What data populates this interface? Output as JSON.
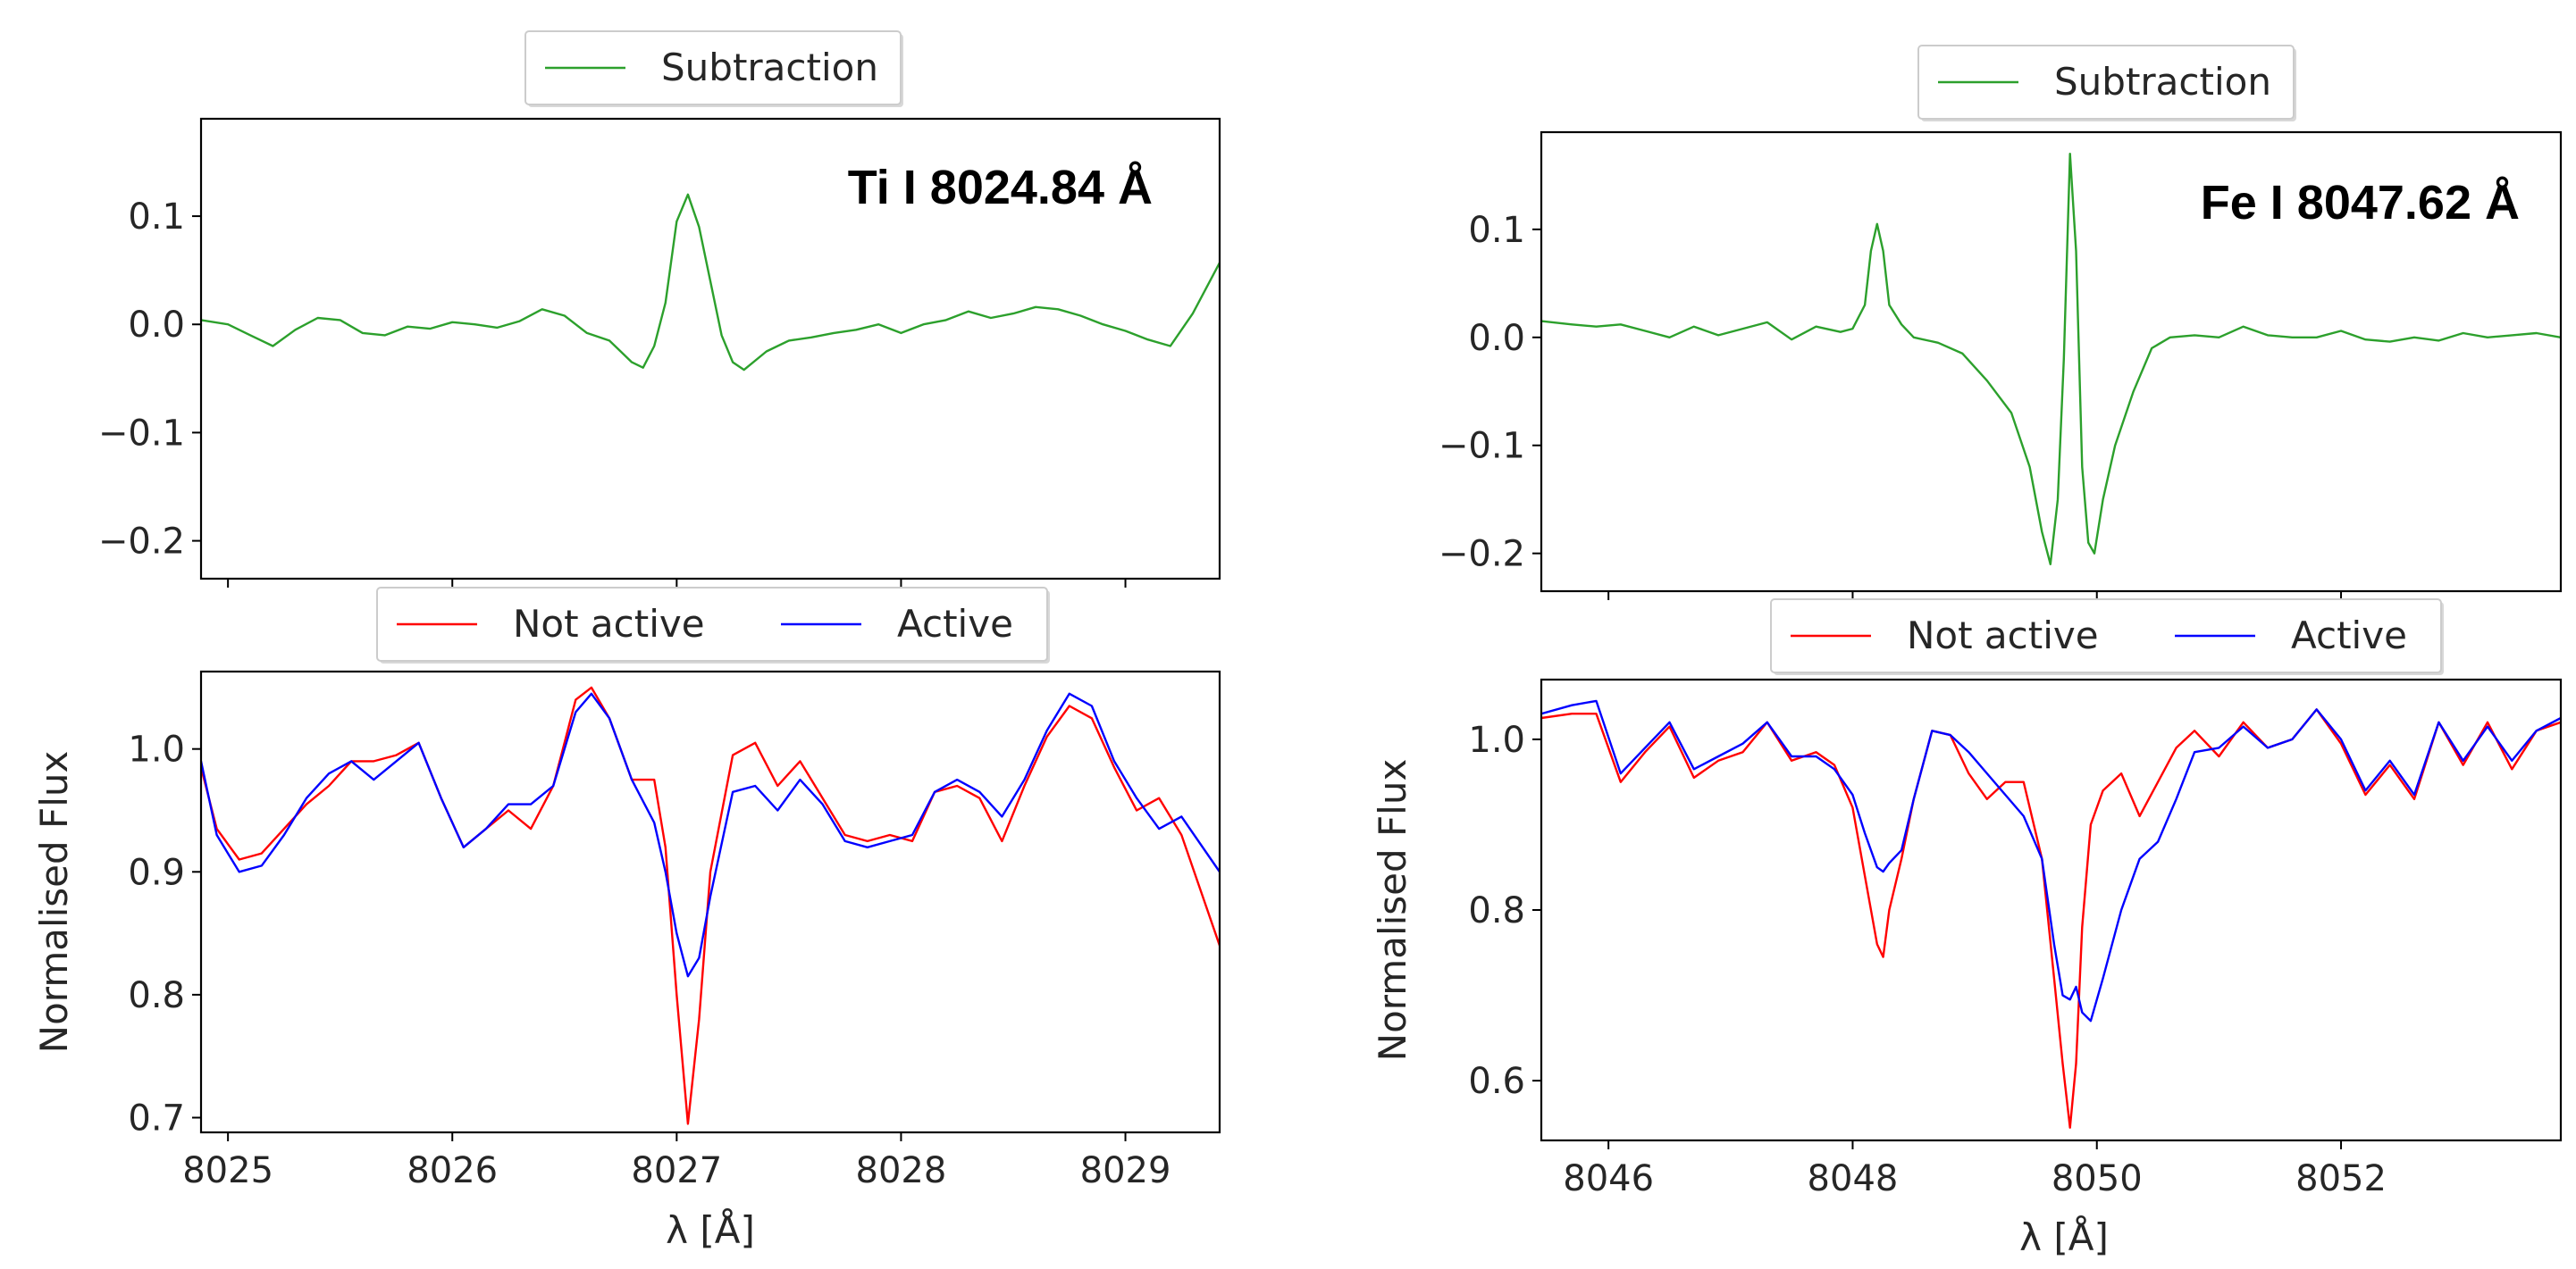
{
  "chart_data": [
    {
      "type": "line",
      "panel": "top-left",
      "title": "",
      "annotation": "Ti I 8024.84 Å",
      "xlabel": "",
      "ylabel": "",
      "xlim": [
        8024.88,
        8029.42
      ],
      "ylim": [
        -0.235,
        0.19
      ],
      "yticks": [
        0.1,
        0.0,
        -0.1,
        -0.2
      ],
      "ytick_labels": [
        "0.1",
        "0.0",
        "−0.1",
        "−0.2"
      ],
      "xticks": [
        8025,
        8026,
        8027,
        8028,
        8029
      ],
      "grid": false,
      "legend": "top-center",
      "series": [
        {
          "name": "Subtraction",
          "color": "#2ca02c",
          "x": [
            8024.88,
            8025.0,
            8025.1,
            8025.2,
            8025.3,
            8025.4,
            8025.5,
            8025.6,
            8025.7,
            8025.8,
            8025.9,
            8026.0,
            8026.1,
            8026.2,
            8026.3,
            8026.4,
            8026.5,
            8026.6,
            8026.7,
            8026.75,
            8026.8,
            8026.85,
            8026.9,
            8026.95,
            8027.0,
            8027.05,
            8027.1,
            8027.15,
            8027.2,
            8027.25,
            8027.3,
            8027.4,
            8027.5,
            8027.6,
            8027.7,
            8027.8,
            8027.9,
            8028.0,
            8028.1,
            8028.2,
            8028.3,
            8028.4,
            8028.5,
            8028.6,
            8028.7,
            8028.8,
            8028.9,
            8029.0,
            8029.1,
            8029.2,
            8029.3,
            8029.42
          ],
          "y": [
            0.004,
            0.0,
            -0.01,
            -0.02,
            -0.005,
            0.006,
            0.004,
            -0.008,
            -0.01,
            -0.002,
            -0.004,
            0.002,
            0.0,
            -0.003,
            0.003,
            0.014,
            0.008,
            -0.008,
            -0.015,
            -0.025,
            -0.035,
            -0.04,
            -0.02,
            0.02,
            0.095,
            0.12,
            0.09,
            0.04,
            -0.01,
            -0.035,
            -0.042,
            -0.025,
            -0.015,
            -0.012,
            -0.008,
            -0.005,
            0.0,
            -0.008,
            0.0,
            0.004,
            0.012,
            0.006,
            0.01,
            0.016,
            0.014,
            0.008,
            0.0,
            -0.006,
            -0.014,
            -0.02,
            0.01,
            0.057
          ]
        }
      ]
    },
    {
      "type": "line",
      "panel": "bottom-left",
      "title": "",
      "xlabel": "λ  [Å]",
      "ylabel": "Normalised Flux",
      "xlim": [
        8024.88,
        8029.42
      ],
      "ylim": [
        0.688,
        1.063
      ],
      "yticks": [
        1.0,
        0.9,
        0.8,
        0.7
      ],
      "ytick_labels": [
        "1.0",
        "0.9",
        "0.8",
        "0.7"
      ],
      "xticks": [
        8025,
        8026,
        8027,
        8028,
        8029
      ],
      "xtick_labels": [
        "8025",
        "8026",
        "8027",
        "8028",
        "8029"
      ],
      "grid": false,
      "legend": "top-center",
      "series": [
        {
          "name": "Not active",
          "color": "#ff0000",
          "x": [
            8024.88,
            8024.95,
            8025.05,
            8025.15,
            8025.25,
            8025.35,
            8025.45,
            8025.55,
            8025.65,
            8025.75,
            8025.85,
            8025.95,
            8026.05,
            8026.15,
            8026.25,
            8026.35,
            8026.45,
            8026.55,
            8026.62,
            8026.7,
            8026.8,
            8026.9,
            8026.95,
            8027.0,
            8027.05,
            8027.1,
            8027.15,
            8027.25,
            8027.35,
            8027.45,
            8027.55,
            8027.65,
            8027.75,
            8027.85,
            8027.95,
            8028.05,
            8028.15,
            8028.25,
            8028.35,
            8028.45,
            8028.55,
            8028.65,
            8028.75,
            8028.85,
            8028.95,
            8029.05,
            8029.15,
            8029.25,
            8029.42
          ],
          "y": [
            0.985,
            0.935,
            0.91,
            0.915,
            0.935,
            0.955,
            0.97,
            0.99,
            0.99,
            0.995,
            1.005,
            0.96,
            0.92,
            0.935,
            0.95,
            0.935,
            0.97,
            1.04,
            1.05,
            1.025,
            0.975,
            0.975,
            0.92,
            0.8,
            0.695,
            0.78,
            0.9,
            0.995,
            1.005,
            0.97,
            0.99,
            0.96,
            0.93,
            0.925,
            0.93,
            0.925,
            0.965,
            0.97,
            0.96,
            0.925,
            0.97,
            1.01,
            1.035,
            1.025,
            0.985,
            0.95,
            0.96,
            0.93,
            0.84
          ]
        },
        {
          "name": "Active",
          "color": "#0000ff",
          "x": [
            8024.88,
            8024.95,
            8025.05,
            8025.15,
            8025.25,
            8025.35,
            8025.45,
            8025.55,
            8025.65,
            8025.75,
            8025.85,
            8025.95,
            8026.05,
            8026.15,
            8026.25,
            8026.35,
            8026.45,
            8026.55,
            8026.62,
            8026.7,
            8026.8,
            8026.9,
            8026.95,
            8027.0,
            8027.05,
            8027.1,
            8027.15,
            8027.25,
            8027.35,
            8027.45,
            8027.55,
            8027.65,
            8027.75,
            8027.85,
            8027.95,
            8028.05,
            8028.15,
            8028.25,
            8028.35,
            8028.45,
            8028.55,
            8028.65,
            8028.75,
            8028.85,
            8028.95,
            8029.05,
            8029.15,
            8029.25,
            8029.42
          ],
          "y": [
            0.99,
            0.93,
            0.9,
            0.905,
            0.93,
            0.96,
            0.98,
            0.99,
            0.975,
            0.99,
            1.005,
            0.96,
            0.92,
            0.935,
            0.955,
            0.955,
            0.97,
            1.03,
            1.045,
            1.025,
            0.975,
            0.94,
            0.9,
            0.85,
            0.815,
            0.83,
            0.88,
            0.965,
            0.97,
            0.95,
            0.975,
            0.955,
            0.925,
            0.92,
            0.925,
            0.93,
            0.965,
            0.975,
            0.965,
            0.945,
            0.975,
            1.015,
            1.045,
            1.035,
            0.99,
            0.96,
            0.935,
            0.945,
            0.9
          ]
        }
      ]
    },
    {
      "type": "line",
      "panel": "top-right",
      "title": "",
      "annotation": "Fe I 8047.62 Å",
      "xlabel": "",
      "ylabel": "",
      "xlim": [
        8045.45,
        8053.8
      ],
      "ylim": [
        -0.235,
        0.19
      ],
      "yticks": [
        0.1,
        0.0,
        -0.1,
        -0.2
      ],
      "ytick_labels": [
        "0.1",
        "0.0",
        "−0.1",
        "−0.2"
      ],
      "xticks": [
        8046,
        8048,
        8050,
        8052
      ],
      "grid": false,
      "legend": "top-center",
      "series": [
        {
          "name": "Subtraction",
          "color": "#2ca02c",
          "x": [
            8045.45,
            8045.7,
            8045.9,
            8046.1,
            8046.3,
            8046.5,
            8046.7,
            8046.9,
            8047.1,
            8047.3,
            8047.5,
            8047.7,
            8047.9,
            8048.0,
            8048.1,
            8048.15,
            8048.2,
            8048.25,
            8048.3,
            8048.4,
            8048.5,
            8048.7,
            8048.9,
            8049.1,
            8049.3,
            8049.45,
            8049.55,
            8049.62,
            8049.68,
            8049.73,
            8049.78,
            8049.83,
            8049.88,
            8049.93,
            8049.98,
            8050.05,
            8050.15,
            8050.3,
            8050.45,
            8050.6,
            8050.8,
            8051.0,
            8051.2,
            8051.4,
            8051.6,
            8051.8,
            8052.0,
            8052.2,
            8052.4,
            8052.6,
            8052.8,
            8053.0,
            8053.2,
            8053.4,
            8053.6,
            8053.8
          ],
          "y": [
            0.015,
            0.012,
            0.01,
            0.012,
            0.006,
            0.0,
            0.01,
            0.002,
            0.008,
            0.014,
            -0.002,
            0.01,
            0.005,
            0.008,
            0.03,
            0.08,
            0.105,
            0.08,
            0.03,
            0.012,
            0.0,
            -0.005,
            -0.015,
            -0.04,
            -0.07,
            -0.12,
            -0.18,
            -0.21,
            -0.15,
            -0.02,
            0.17,
            0.08,
            -0.12,
            -0.19,
            -0.2,
            -0.15,
            -0.1,
            -0.05,
            -0.01,
            0.0,
            0.002,
            0.0,
            0.01,
            0.002,
            0.0,
            0.0,
            0.006,
            -0.002,
            -0.004,
            0.0,
            -0.003,
            0.004,
            0.0,
            0.002,
            0.004,
            0.0
          ]
        }
      ]
    },
    {
      "type": "line",
      "panel": "bottom-right",
      "title": "",
      "xlabel": "λ  [Å]",
      "ylabel": "Normalised Flux",
      "xlim": [
        8045.45,
        8053.8
      ],
      "ylim": [
        0.53,
        1.07
      ],
      "yticks": [
        1.0,
        0.8,
        0.6
      ],
      "ytick_labels": [
        "1.0",
        "0.8",
        "0.6"
      ],
      "xticks": [
        8046,
        8048,
        8050,
        8052
      ],
      "xtick_labels": [
        "8046",
        "8048",
        "8050",
        "8052"
      ],
      "grid": false,
      "legend": "top-center",
      "series": [
        {
          "name": "Not active",
          "color": "#ff0000",
          "x": [
            8045.45,
            8045.7,
            8045.9,
            8046.1,
            8046.3,
            8046.5,
            8046.7,
            8046.9,
            8047.1,
            8047.3,
            8047.5,
            8047.7,
            8047.85,
            8048.0,
            8048.1,
            8048.2,
            8048.25,
            8048.3,
            8048.4,
            8048.5,
            8048.65,
            8048.8,
            8048.95,
            8049.1,
            8049.25,
            8049.4,
            8049.55,
            8049.65,
            8049.72,
            8049.78,
            8049.83,
            8049.88,
            8049.95,
            8050.05,
            8050.2,
            8050.35,
            8050.5,
            8050.65,
            8050.8,
            8051.0,
            8051.2,
            8051.4,
            8051.6,
            8051.8,
            8052.0,
            8052.2,
            8052.4,
            8052.6,
            8052.8,
            8053.0,
            8053.2,
            8053.4,
            8053.6,
            8053.8
          ],
          "y": [
            1.025,
            1.03,
            1.03,
            0.95,
            0.985,
            1.015,
            0.955,
            0.975,
            0.985,
            1.02,
            0.975,
            0.985,
            0.97,
            0.92,
            0.84,
            0.76,
            0.745,
            0.8,
            0.86,
            0.93,
            1.01,
            1.005,
            0.96,
            0.93,
            0.95,
            0.95,
            0.86,
            0.72,
            0.62,
            0.545,
            0.62,
            0.78,
            0.9,
            0.94,
            0.96,
            0.91,
            0.95,
            0.99,
            1.01,
            0.98,
            1.02,
            0.99,
            1.0,
            1.035,
            0.995,
            0.935,
            0.97,
            0.93,
            1.02,
            0.97,
            1.02,
            0.965,
            1.01,
            1.02
          ]
        },
        {
          "name": "Active",
          "color": "#0000ff",
          "x": [
            8045.45,
            8045.7,
            8045.9,
            8046.1,
            8046.3,
            8046.5,
            8046.7,
            8046.9,
            8047.1,
            8047.3,
            8047.5,
            8047.7,
            8047.85,
            8048.0,
            8048.1,
            8048.2,
            8048.25,
            8048.3,
            8048.4,
            8048.5,
            8048.65,
            8048.8,
            8048.95,
            8049.1,
            8049.25,
            8049.4,
            8049.55,
            8049.65,
            8049.72,
            8049.78,
            8049.83,
            8049.88,
            8049.95,
            8050.05,
            8050.2,
            8050.35,
            8050.5,
            8050.65,
            8050.8,
            8051.0,
            8051.2,
            8051.4,
            8051.6,
            8051.8,
            8052.0,
            8052.2,
            8052.4,
            8052.6,
            8052.8,
            8053.0,
            8053.2,
            8053.4,
            8053.6,
            8053.8
          ],
          "y": [
            1.03,
            1.04,
            1.045,
            0.96,
            0.99,
            1.02,
            0.965,
            0.98,
            0.995,
            1.02,
            0.98,
            0.98,
            0.965,
            0.935,
            0.89,
            0.85,
            0.845,
            0.855,
            0.87,
            0.93,
            1.01,
            1.005,
            0.985,
            0.96,
            0.935,
            0.91,
            0.86,
            0.76,
            0.7,
            0.695,
            0.71,
            0.68,
            0.67,
            0.72,
            0.8,
            0.86,
            0.88,
            0.93,
            0.985,
            0.99,
            1.015,
            0.99,
            1.0,
            1.035,
            1.0,
            0.94,
            0.975,
            0.935,
            1.02,
            0.975,
            1.015,
            0.975,
            1.01,
            1.025
          ]
        }
      ]
    }
  ]
}
